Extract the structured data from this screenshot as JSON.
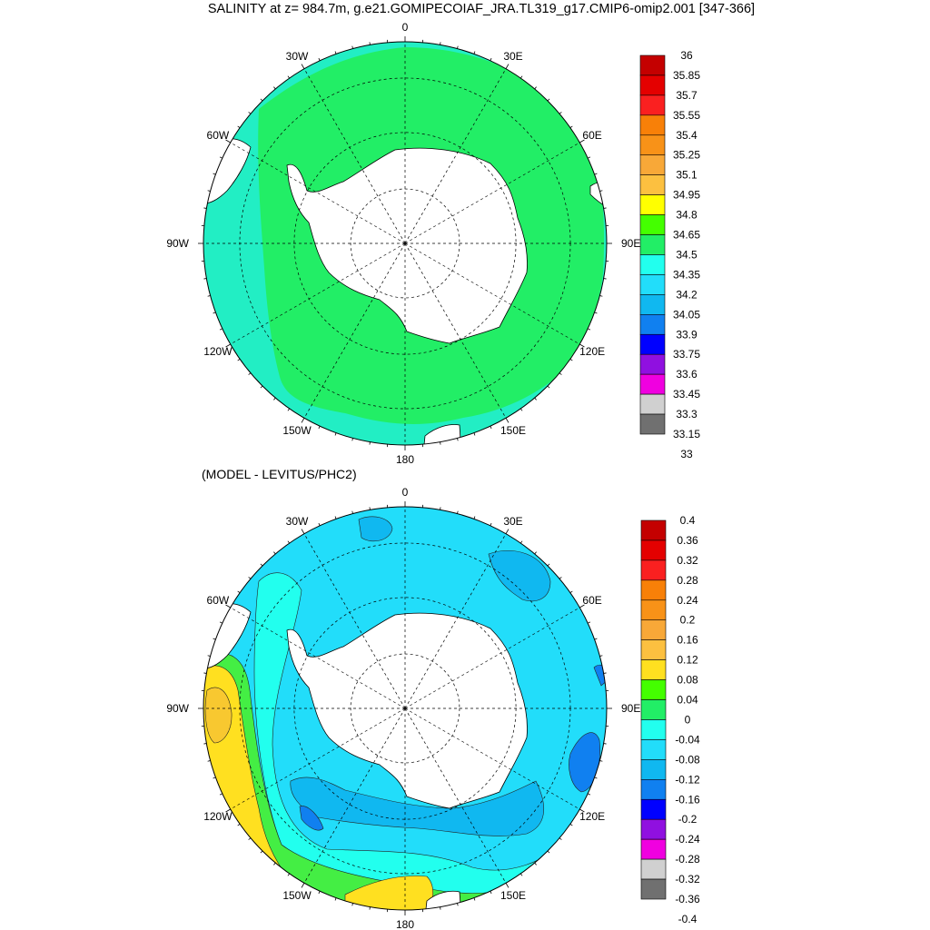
{
  "title": "SALINITY at z= 984.7m, g.e21.GOMIPECOIAF_JRA.TL319_g17.CMIP6-omip2.001 [347-366]",
  "diff_title": "(MODEL - LEVITUS/PHC2)",
  "lon_labels": [
    "0",
    "30E",
    "60E",
    "90E",
    "120E",
    "150E",
    "180",
    "150W",
    "120W",
    "90W",
    "60W",
    "30W"
  ],
  "colors": {
    "land": "#ffffff",
    "ocean_main": "#22ee66",
    "ocean_north": "#22eec4",
    "diff_bg": "#22ddfa",
    "diff_shelf": "#10b8f0",
    "diff_deep": "#1080f0",
    "diff_pos": "#44ee44",
    "diff_yellow": "#ffe020",
    "diff_orange": "#f8c830",
    "diff_cyan": "#22ffee"
  },
  "map1": {
    "colorbar": {
      "labels": [
        "36",
        "35.85",
        "35.7",
        "35.55",
        "35.4",
        "35.25",
        "35.1",
        "34.95",
        "34.8",
        "34.65",
        "34.5",
        "34.35",
        "34.2",
        "34.05",
        "33.9",
        "33.75",
        "33.6",
        "33.45",
        "33.3",
        "33.15",
        "33"
      ],
      "colors": [
        "#c40000",
        "#e40000",
        "#fa2020",
        "#f88008",
        "#f89218",
        "#f8a838",
        "#fcc040",
        "#ffff00",
        "#44ff00",
        "#22ee66",
        "#22ffee",
        "#22ddfa",
        "#10b8f0",
        "#1080f0",
        "#0000ff",
        "#9010e0",
        "#f000e0",
        "#d0d0d0",
        "#707070"
      ]
    }
  },
  "map2": {
    "colorbar": {
      "labels": [
        "0.4",
        "0.36",
        "0.32",
        "0.28",
        "0.24",
        "0.2",
        "0.16",
        "0.12",
        "0.08",
        "0.04",
        "0",
        "-0.04",
        "-0.08",
        "-0.12",
        "-0.16",
        "-0.2",
        "-0.24",
        "-0.28",
        "-0.32",
        "-0.36",
        "-0.4"
      ],
      "colors": [
        "#c40000",
        "#e40000",
        "#fa2020",
        "#f88008",
        "#f89218",
        "#f8a838",
        "#fcc040",
        "#ffe020",
        "#44ff00",
        "#22ee66",
        "#22ffee",
        "#22ddfa",
        "#10b8f0",
        "#1080f0",
        "#0000ff",
        "#9010e0",
        "#f000e0",
        "#d0d0d0",
        "#707070"
      ]
    }
  }
}
